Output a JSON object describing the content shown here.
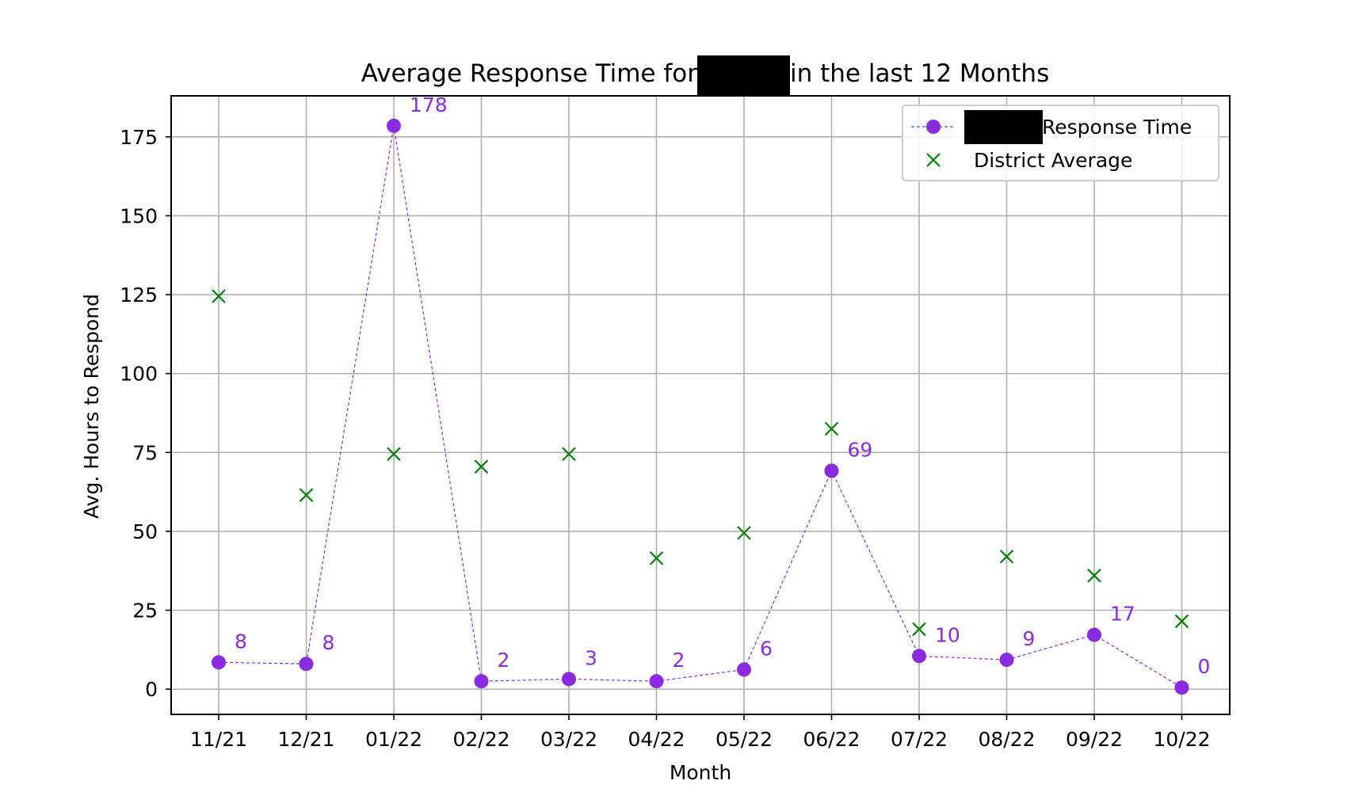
{
  "chart_data": {
    "type": "line",
    "title": {
      "before": "Average Response Time for",
      "after": "in the last 12 Months"
    },
    "xlabel": "Month",
    "ylabel": "Avg. Hours to Respond",
    "categories": [
      "11/21",
      "12/21",
      "01/22",
      "02/22",
      "03/22",
      "04/22",
      "05/22",
      "06/22",
      "07/22",
      "08/22",
      "09/22",
      "10/22"
    ],
    "ylim": [
      -8,
      188
    ],
    "yticks": [
      0,
      25,
      50,
      75,
      100,
      125,
      150,
      175
    ],
    "grid": true,
    "legend_position": "top-right",
    "series": [
      {
        "name": "Response Time",
        "style": "dashed line with circle markers",
        "color": "#8a2be2",
        "values": [
          8.5,
          8,
          178.5,
          2.5,
          3.2,
          2.5,
          6.2,
          69.2,
          10.5,
          9.3,
          17.2,
          0.5
        ],
        "labels": [
          "8",
          "8",
          "178",
          "2",
          "3",
          "2",
          "6",
          "69",
          "10",
          "9",
          "17",
          "0"
        ]
      },
      {
        "name": "District Average",
        "style": "x markers",
        "color": "#008000",
        "values": [
          124.5,
          61.5,
          74.5,
          70.5,
          74.5,
          41.5,
          49.5,
          82.5,
          19,
          42,
          36,
          21.5
        ]
      }
    ],
    "redacted_color": "#000000"
  }
}
